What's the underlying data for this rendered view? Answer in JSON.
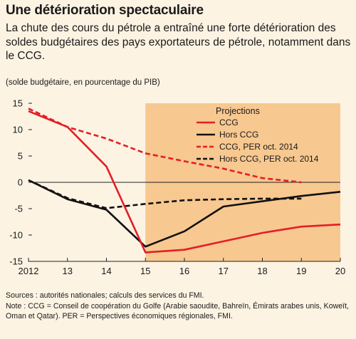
{
  "header": {
    "title": "Une détérioration spectaculaire",
    "subtitle": "La chute des cours du pétrole a entraîné une forte détérioration des soldes budgétaires des pays exportateurs de pétrole, notamment dans le CCG.",
    "units": "(solde budgétaire, en pourcentage du PIB)"
  },
  "footer": {
    "sources": "Sources : autorités nationales; calculs des services du FMI.",
    "note": "Note : CCG = Conseil de coopération du Golfe (Arabie saoudite, Bahreïn, Émirats arabes unis, Koweït, Oman et Qatar). PER = Perspectives économiques régionales, FMI."
  },
  "chart_data": {
    "type": "line",
    "x_tick_labels": [
      "2012",
      "13",
      "14",
      "15",
      "16",
      "17",
      "18",
      "19",
      "20"
    ],
    "x": [
      2012,
      2013,
      2014,
      2015,
      2016,
      2017,
      2018,
      2019,
      2020
    ],
    "xlim": [
      2012,
      2020
    ],
    "ylim": [
      -15,
      15
    ],
    "y_ticks": [
      -15,
      -10,
      -5,
      0,
      5,
      10,
      15
    ],
    "projection_region": {
      "label": "Projections",
      "from": 2015,
      "to": 2020,
      "color": "#f7c890"
    },
    "background_color": "#fdf3e3",
    "zero_line": true,
    "legend_position": "top-right",
    "series": [
      {
        "name": "CCG",
        "color": "#e41e26",
        "dashed": false,
        "x": [
          2012,
          2013,
          2014,
          2015,
          2016,
          2017,
          2018,
          2019,
          2020
        ],
        "values": [
          13.5,
          10.5,
          3.0,
          -13.3,
          -12.8,
          -11.2,
          -9.6,
          -8.4,
          -8.0
        ]
      },
      {
        "name": "Hors CCG",
        "color": "#111111",
        "dashed": false,
        "x": [
          2012,
          2013,
          2014,
          2015,
          2016,
          2017,
          2018,
          2019,
          2020
        ],
        "values": [
          0.4,
          -3.2,
          -5.2,
          -12.2,
          -9.3,
          -4.6,
          -3.6,
          -2.6,
          -1.8
        ]
      },
      {
        "name": "CCG, PER oct. 2014",
        "color": "#e41e26",
        "dashed": true,
        "x": [
          2012,
          2013,
          2014,
          2015,
          2016,
          2017,
          2018,
          2019
        ],
        "values": [
          14.0,
          10.5,
          8.3,
          5.5,
          4.0,
          2.6,
          0.8,
          0.0
        ]
      },
      {
        "name": "Hors CCG, PER oct. 2014",
        "color": "#111111",
        "dashed": true,
        "x": [
          2012,
          2013,
          2014,
          2015,
          2016,
          2017,
          2018,
          2019
        ],
        "values": [
          0.4,
          -3.0,
          -4.9,
          -4.1,
          -3.4,
          -3.2,
          -3.1,
          -3.1
        ]
      }
    ]
  }
}
